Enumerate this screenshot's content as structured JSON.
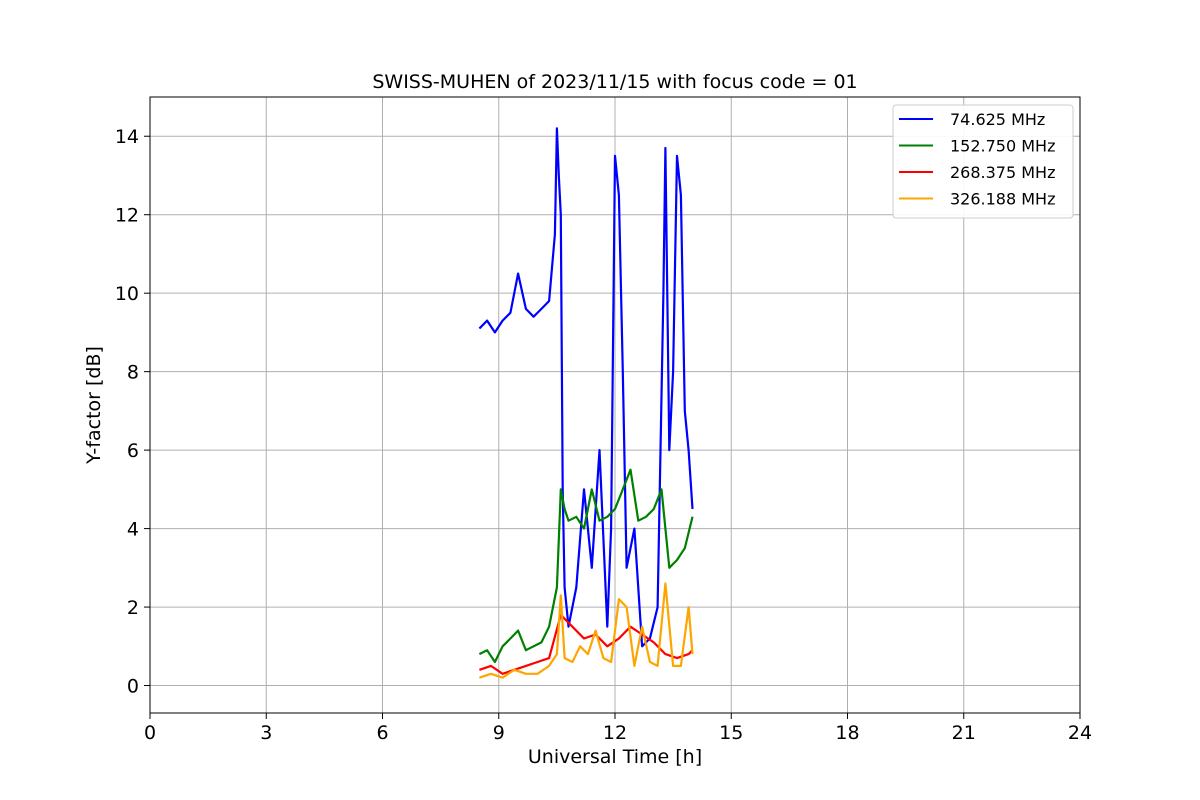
{
  "chart_data": {
    "type": "line",
    "title": "SWISS-MUHEN of 2023/11/15 with focus code = 01",
    "xlabel": "Universal Time [h]",
    "ylabel": "Y-factor [dB]",
    "xlim": [
      0,
      24
    ],
    "ylim": [
      -0.7,
      15
    ],
    "xticks": [
      0,
      3,
      6,
      9,
      12,
      15,
      18,
      21,
      24
    ],
    "yticks": [
      0,
      2,
      4,
      6,
      8,
      10,
      12,
      14
    ],
    "grid": true,
    "legend_position": "top-right",
    "series": [
      {
        "name": "  74.625 MHz",
        "color": "#0000ff",
        "x": [
          8.5,
          8.7,
          8.9,
          9.1,
          9.3,
          9.5,
          9.7,
          9.9,
          10.1,
          10.3,
          10.45,
          10.5,
          10.55,
          10.6,
          10.65,
          10.7,
          10.8,
          11.0,
          11.2,
          11.4,
          11.6,
          11.8,
          11.9,
          12.0,
          12.1,
          12.2,
          12.3,
          12.5,
          12.7,
          12.9,
          13.1,
          13.25,
          13.3,
          13.4,
          13.5,
          13.6,
          13.7,
          13.8,
          13.9,
          14.0
        ],
        "y": [
          9.1,
          9.3,
          9.0,
          9.3,
          9.5,
          10.5,
          9.6,
          9.4,
          9.6,
          9.8,
          11.5,
          14.2,
          13.0,
          12.0,
          5.0,
          2.5,
          1.5,
          2.5,
          5.0,
          3.0,
          6.0,
          1.5,
          4.0,
          13.5,
          12.5,
          8.0,
          3.0,
          4.0,
          1.0,
          1.2,
          2.0,
          10.0,
          13.7,
          6.0,
          8.0,
          13.5,
          12.5,
          7.0,
          6.0,
          4.5
        ]
      },
      {
        "name": "152.750 MHz",
        "color": "#008000",
        "x": [
          8.5,
          8.7,
          8.9,
          9.1,
          9.3,
          9.5,
          9.7,
          9.9,
          10.1,
          10.3,
          10.5,
          10.6,
          10.7,
          10.8,
          11.0,
          11.2,
          11.4,
          11.6,
          11.8,
          12.0,
          12.2,
          12.4,
          12.6,
          12.8,
          13.0,
          13.2,
          13.4,
          13.6,
          13.8,
          14.0
        ],
        "y": [
          0.8,
          0.9,
          0.6,
          1.0,
          1.2,
          1.4,
          0.9,
          1.0,
          1.1,
          1.5,
          2.5,
          5.0,
          4.5,
          4.2,
          4.3,
          4.0,
          5.0,
          4.2,
          4.3,
          4.5,
          5.0,
          5.5,
          4.2,
          4.3,
          4.5,
          5.0,
          3.0,
          3.2,
          3.5,
          4.3
        ]
      },
      {
        "name": "268.375 MHz",
        "color": "#ff0000",
        "x": [
          8.5,
          8.8,
          9.1,
          9.4,
          9.7,
          10.0,
          10.3,
          10.6,
          10.9,
          11.2,
          11.5,
          11.8,
          12.1,
          12.4,
          12.7,
          13.0,
          13.3,
          13.6,
          13.9,
          14.0
        ],
        "y": [
          0.4,
          0.5,
          0.3,
          0.4,
          0.5,
          0.6,
          0.7,
          1.8,
          1.5,
          1.2,
          1.3,
          1.0,
          1.2,
          1.5,
          1.3,
          1.1,
          0.8,
          0.7,
          0.8,
          0.9
        ]
      },
      {
        "name": "326.188 MHz",
        "color": "#ffa500",
        "x": [
          8.5,
          8.8,
          9.1,
          9.4,
          9.7,
          10.0,
          10.3,
          10.5,
          10.6,
          10.7,
          10.9,
          11.1,
          11.3,
          11.5,
          11.7,
          11.9,
          12.1,
          12.3,
          12.5,
          12.7,
          12.9,
          13.1,
          13.3,
          13.5,
          13.7,
          13.9,
          14.0
        ],
        "y": [
          0.2,
          0.3,
          0.2,
          0.4,
          0.3,
          0.3,
          0.5,
          0.8,
          2.3,
          0.7,
          0.6,
          1.0,
          0.8,
          1.4,
          0.7,
          0.6,
          2.2,
          2.0,
          0.5,
          1.5,
          0.6,
          0.5,
          2.6,
          0.5,
          0.5,
          2.0,
          0.8
        ]
      }
    ]
  }
}
